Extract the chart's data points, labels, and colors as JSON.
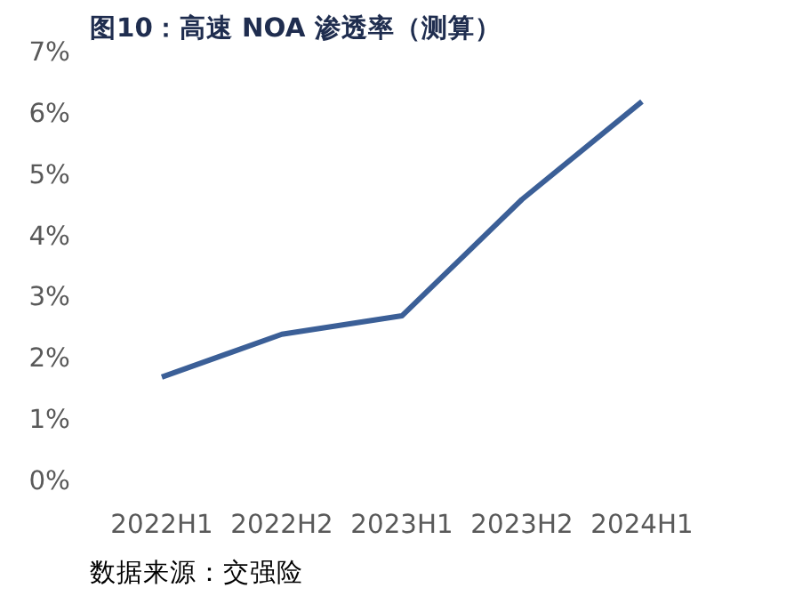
{
  "chart_data": {
    "type": "line",
    "title": "图10：高速 NOA 渗透率（测算）",
    "categories": [
      "2022H1",
      "2022H2",
      "2023H1",
      "2023H2",
      "2024H1"
    ],
    "series": [
      {
        "color": "#3b5f97",
        "values": [
          1.7,
          2.4,
          2.7,
          4.6,
          6.2
        ]
      }
    ],
    "ylim": [
      0,
      7
    ],
    "yticks": [
      {
        "value": 0,
        "label": "0%"
      },
      {
        "value": 1,
        "label": "1%"
      },
      {
        "value": 2,
        "label": "2%"
      },
      {
        "value": 3,
        "label": "3%"
      },
      {
        "value": 4,
        "label": "4%"
      },
      {
        "value": 5,
        "label": "5%"
      },
      {
        "value": 6,
        "label": "6%"
      },
      {
        "value": 7,
        "label": "7%"
      }
    ],
    "annotations": [
      "数据来源：交强险"
    ]
  }
}
